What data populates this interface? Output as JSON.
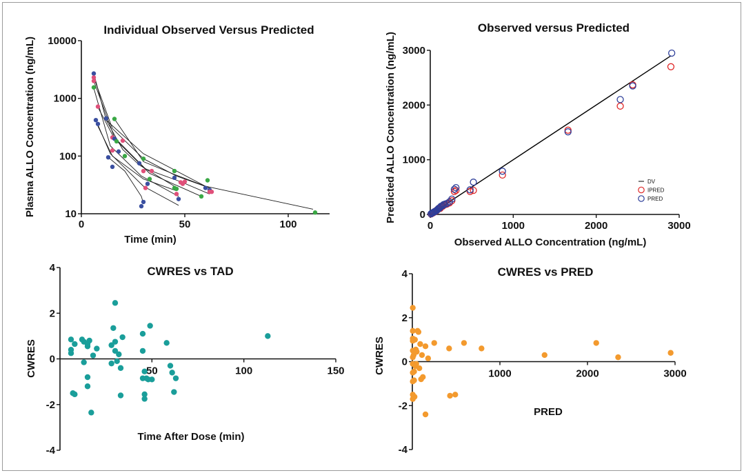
{
  "chart_data": [
    {
      "type": "scatter",
      "title": "Individual Observed Versus Predicted",
      "xlabel": "Time (min)",
      "ylabel": "Plasma ALLO Concentration (ng/mL)",
      "xlim": [
        0,
        120
      ],
      "ylim": [
        10,
        10000
      ],
      "yscale": "log",
      "xticks": [
        "0",
        "50",
        "100"
      ],
      "yticks": [
        "10",
        "100",
        "1000",
        "10000"
      ],
      "subject_colors": [
        "#3a4fa0",
        "#e0507a",
        "#3aa845"
      ],
      "observed_points": [
        {
          "x": 6,
          "y": 2700,
          "s": 0
        },
        {
          "x": 6,
          "y": 2300,
          "s": 1
        },
        {
          "x": 6,
          "y": 2000,
          "s": 1
        },
        {
          "x": 6,
          "y": 1550,
          "s": 2
        },
        {
          "x": 7,
          "y": 420,
          "s": 0
        },
        {
          "x": 8,
          "y": 360,
          "s": 0
        },
        {
          "x": 8,
          "y": 720,
          "s": 1
        },
        {
          "x": 12,
          "y": 450,
          "s": 0
        },
        {
          "x": 13,
          "y": 95,
          "s": 0
        },
        {
          "x": 15,
          "y": 65,
          "s": 0
        },
        {
          "x": 15,
          "y": 125,
          "s": 1
        },
        {
          "x": 15,
          "y": 210,
          "s": 1
        },
        {
          "x": 16,
          "y": 440,
          "s": 2
        },
        {
          "x": 16,
          "y": 200,
          "s": 0
        },
        {
          "x": 17,
          "y": 180,
          "s": 2
        },
        {
          "x": 18,
          "y": 120,
          "s": 0
        },
        {
          "x": 20,
          "y": 185,
          "s": 1
        },
        {
          "x": 21,
          "y": 100,
          "s": 2
        },
        {
          "x": 28,
          "y": 75,
          "s": 0
        },
        {
          "x": 29,
          "y": 13.5,
          "s": 0
        },
        {
          "x": 30,
          "y": 16,
          "s": 0
        },
        {
          "x": 30,
          "y": 90,
          "s": 2
        },
        {
          "x": 30,
          "y": 55,
          "s": 1
        },
        {
          "x": 31,
          "y": 28,
          "s": 1
        },
        {
          "x": 32,
          "y": 33,
          "s": 0
        },
        {
          "x": 33,
          "y": 40,
          "s": 2
        },
        {
          "x": 34,
          "y": 55,
          "s": 1
        },
        {
          "x": 45,
          "y": 55,
          "s": 2
        },
        {
          "x": 45,
          "y": 42,
          "s": 0
        },
        {
          "x": 45,
          "y": 28,
          "s": 2
        },
        {
          "x": 46,
          "y": 27,
          "s": 2
        },
        {
          "x": 46,
          "y": 22,
          "s": 1
        },
        {
          "x": 47,
          "y": 18,
          "s": 0
        },
        {
          "x": 48,
          "y": 35,
          "s": 1
        },
        {
          "x": 49,
          "y": 33,
          "s": 1
        },
        {
          "x": 50,
          "y": 36,
          "s": 1
        },
        {
          "x": 58,
          "y": 20,
          "s": 2
        },
        {
          "x": 60,
          "y": 28,
          "s": 0
        },
        {
          "x": 61,
          "y": 38,
          "s": 2
        },
        {
          "x": 62,
          "y": 26,
          "s": 0
        },
        {
          "x": 62,
          "y": 24,
          "s": 1
        },
        {
          "x": 63,
          "y": 24,
          "s": 1
        },
        {
          "x": 113,
          "y": 10.5,
          "s": 2
        }
      ],
      "predicted_curves": [
        [
          [
            6,
            2700
          ],
          [
            12,
            420
          ],
          [
            30,
            110
          ],
          [
            60,
            30
          ],
          [
            112,
            12
          ]
        ],
        [
          [
            6,
            2300
          ],
          [
            15,
            300
          ],
          [
            30,
            90
          ],
          [
            46,
            45
          ],
          [
            62,
            28
          ]
        ],
        [
          [
            6,
            2000
          ],
          [
            16,
            210
          ],
          [
            31,
            60
          ],
          [
            48,
            36
          ],
          [
            62,
            22
          ]
        ],
        [
          [
            6,
            1500
          ],
          [
            14,
            150
          ],
          [
            29,
            45
          ],
          [
            47,
            20
          ]
        ],
        [
          [
            7,
            420
          ],
          [
            14,
            110
          ],
          [
            30,
            30
          ],
          [
            47,
            14
          ]
        ],
        [
          [
            8,
            330
          ],
          [
            15,
            100
          ],
          [
            30,
            40
          ],
          [
            46,
            25
          ]
        ],
        [
          [
            12,
            420
          ],
          [
            20,
            130
          ],
          [
            28,
            70
          ],
          [
            45,
            30
          ]
        ],
        [
          [
            16,
            440
          ],
          [
            30,
            80
          ],
          [
            45,
            48
          ],
          [
            60,
            30
          ]
        ],
        [
          [
            8,
            700
          ],
          [
            16,
            200
          ],
          [
            33,
            50
          ],
          [
            58,
            20
          ]
        ],
        [
          [
            13,
            95
          ],
          [
            21,
            55
          ],
          [
            29,
            20
          ],
          [
            30,
            15
          ]
        ]
      ]
    },
    {
      "type": "scatter",
      "title": "Observed versus Predicted",
      "xlabel": "Observed ALLO Concentration (ng/mL)",
      "ylabel": "Predicted ALLO Concentration (ng/mL)",
      "xlim": [
        0,
        3000
      ],
      "ylim": [
        0,
        3000
      ],
      "xticks": [
        "0",
        "1000",
        "2000",
        "3000"
      ],
      "yticks": [
        "0",
        "1000",
        "2000",
        "3000"
      ],
      "identity_line": [
        [
          0,
          0
        ],
        [
          2900,
          2900
        ]
      ],
      "legend": [
        {
          "label": "DV",
          "color": "#000000"
        },
        {
          "label": "IPRED",
          "color": "#e02828"
        },
        {
          "label": "PRED",
          "color": "#2e3f9a"
        }
      ],
      "legend_position": "right",
      "series": [
        {
          "name": "IPRED",
          "color": "#e02828",
          "points": [
            [
              10,
              8
            ],
            [
              20,
              20
            ],
            [
              30,
              25
            ],
            [
              40,
              35
            ],
            [
              50,
              45
            ],
            [
              60,
              60
            ],
            [
              70,
              60
            ],
            [
              80,
              75
            ],
            [
              90,
              95
            ],
            [
              100,
              100
            ],
            [
              110,
              120
            ],
            [
              120,
              110
            ],
            [
              130,
              140
            ],
            [
              150,
              150
            ],
            [
              160,
              170
            ],
            [
              180,
              180
            ],
            [
              200,
              190
            ],
            [
              230,
              210
            ],
            [
              260,
              250
            ],
            [
              290,
              420
            ],
            [
              310,
              440
            ],
            [
              480,
              420
            ],
            [
              520,
              440
            ],
            [
              870,
              720
            ],
            [
              1660,
              1540
            ],
            [
              2290,
              1980
            ],
            [
              2440,
              2370
            ],
            [
              2900,
              2700
            ]
          ]
        },
        {
          "name": "PRED",
          "color": "#2e3f9a",
          "points": [
            [
              10,
              12
            ],
            [
              20,
              25
            ],
            [
              30,
              30
            ],
            [
              40,
              40
            ],
            [
              50,
              50
            ],
            [
              60,
              55
            ],
            [
              70,
              65
            ],
            [
              80,
              80
            ],
            [
              90,
              90
            ],
            [
              100,
              110
            ],
            [
              110,
              115
            ],
            [
              120,
              130
            ],
            [
              130,
              150
            ],
            [
              150,
              160
            ],
            [
              160,
              180
            ],
            [
              180,
              190
            ],
            [
              200,
              200
            ],
            [
              230,
              230
            ],
            [
              260,
              280
            ],
            [
              290,
              460
            ],
            [
              310,
              490
            ],
            [
              480,
              450
            ],
            [
              520,
              590
            ],
            [
              870,
              790
            ],
            [
              1660,
              1510
            ],
            [
              2290,
              2100
            ],
            [
              2440,
              2350
            ],
            [
              2910,
              2950
            ]
          ]
        }
      ]
    },
    {
      "type": "scatter",
      "title": "CWRES vs TAD",
      "xlabel": "Time After Dose (min)",
      "ylabel": "CWRES",
      "xlim": [
        0,
        150
      ],
      "ylim": [
        -4,
        4
      ],
      "xticks": [
        "50",
        "100",
        "150"
      ],
      "yticks": [
        "-4",
        "-2",
        "0",
        "2",
        "4"
      ],
      "color": "#1a9e9a",
      "points": [
        [
          6,
          0.85
        ],
        [
          6,
          0.4
        ],
        [
          6,
          0.25
        ],
        [
          7,
          -1.5
        ],
        [
          8,
          -1.55
        ],
        [
          8,
          0.65
        ],
        [
          12,
          0.85
        ],
        [
          13,
          -0.15
        ],
        [
          13,
          0.75
        ],
        [
          15,
          0.55
        ],
        [
          15,
          0.65
        ],
        [
          15,
          -0.8
        ],
        [
          15,
          -1.2
        ],
        [
          16,
          0.8
        ],
        [
          17,
          -2.35
        ],
        [
          18,
          0.15
        ],
        [
          20,
          0.45
        ],
        [
          28,
          -0.2
        ],
        [
          28,
          0.6
        ],
        [
          29,
          1.35
        ],
        [
          30,
          2.45
        ],
        [
          30,
          0.75
        ],
        [
          30,
          0.35
        ],
        [
          31,
          -0.1
        ],
        [
          32,
          0.2
        ],
        [
          33,
          -0.4
        ],
        [
          33,
          -1.6
        ],
        [
          34,
          0.95
        ],
        [
          45,
          1.1
        ],
        [
          45,
          0.35
        ],
        [
          45,
          -0.85
        ],
        [
          46,
          -0.55
        ],
        [
          46,
          -1.55
        ],
        [
          46,
          -1.75
        ],
        [
          47,
          -0.85
        ],
        [
          48,
          -0.9
        ],
        [
          49,
          1.45
        ],
        [
          50,
          -0.9
        ],
        [
          58,
          0.7
        ],
        [
          60,
          -0.3
        ],
        [
          61,
          -0.6
        ],
        [
          62,
          -1.45
        ],
        [
          63,
          -0.85
        ],
        [
          113,
          1.0
        ]
      ]
    },
    {
      "type": "scatter",
      "title": "CWRES vs PRED",
      "xlabel": "PRED",
      "ylabel": "CWRES",
      "xlim": [
        0,
        3000
      ],
      "ylim": [
        -4,
        4
      ],
      "xticks": [
        "1000",
        "2000",
        "3000"
      ],
      "yticks": [
        "-4",
        "-2",
        "0",
        "2",
        "4"
      ],
      "color": "#f39a2e",
      "points": [
        [
          5,
          2.45
        ],
        [
          5,
          1.4
        ],
        [
          5,
          1.05
        ],
        [
          5,
          0.95
        ],
        [
          5,
          0.5
        ],
        [
          5,
          0.2
        ],
        [
          5,
          -0.1
        ],
        [
          5,
          -0.5
        ],
        [
          5,
          -0.9
        ],
        [
          5,
          -1.5
        ],
        [
          5,
          -1.7
        ],
        [
          15,
          0.3
        ],
        [
          20,
          -0.45
        ],
        [
          20,
          -0.85
        ],
        [
          25,
          -1.6
        ],
        [
          30,
          1.0
        ],
        [
          35,
          -0.2
        ],
        [
          40,
          0.55
        ],
        [
          45,
          -0.1
        ],
        [
          50,
          0.45
        ],
        [
          60,
          1.4
        ],
        [
          70,
          1.35
        ],
        [
          80,
          -0.3
        ],
        [
          90,
          0.8
        ],
        [
          100,
          -0.8
        ],
        [
          110,
          0.3
        ],
        [
          120,
          -0.7
        ],
        [
          150,
          0.7
        ],
        [
          150,
          -2.4
        ],
        [
          180,
          0.15
        ],
        [
          250,
          0.85
        ],
        [
          420,
          0.6
        ],
        [
          430,
          -1.55
        ],
        [
          490,
          -1.5
        ],
        [
          590,
          0.85
        ],
        [
          790,
          0.6
        ],
        [
          1510,
          0.3
        ],
        [
          2100,
          0.85
        ],
        [
          2350,
          0.2
        ],
        [
          2950,
          0.4
        ]
      ]
    }
  ]
}
